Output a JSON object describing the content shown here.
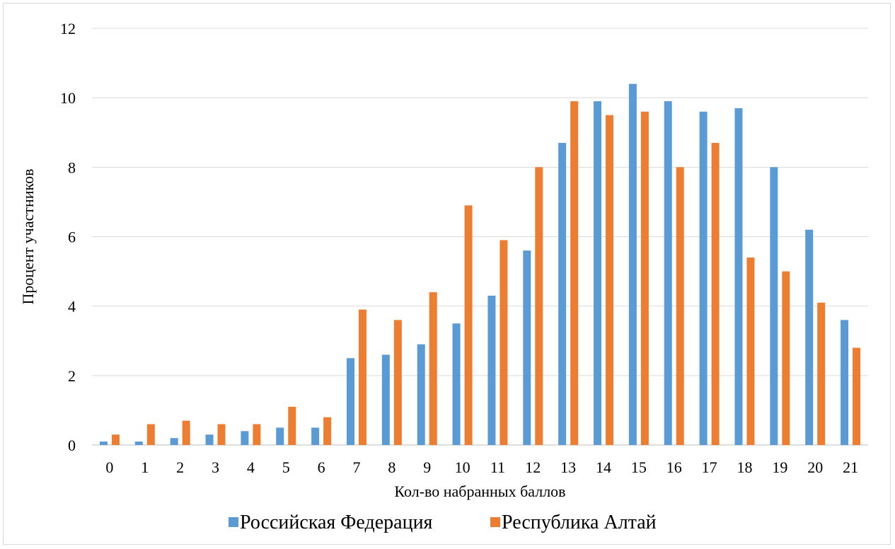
{
  "chart_data": {
    "type": "bar",
    "categories": [
      "0",
      "1",
      "2",
      "3",
      "4",
      "5",
      "6",
      "7",
      "8",
      "9",
      "10",
      "11",
      "12",
      "13",
      "14",
      "15",
      "16",
      "17",
      "18",
      "19",
      "20",
      "21"
    ],
    "series": [
      {
        "name": "Российская Федерация",
        "color": "#5B9BD5",
        "values": [
          0.1,
          0.1,
          0.2,
          0.3,
          0.4,
          0.5,
          0.5,
          2.5,
          2.6,
          2.9,
          3.5,
          4.3,
          5.6,
          8.7,
          9.9,
          10.4,
          9.9,
          9.6,
          9.7,
          8.0,
          6.2,
          3.6
        ]
      },
      {
        "name": "Республика Алтай",
        "color": "#ED7D31",
        "values": [
          0.3,
          0.6,
          0.7,
          0.6,
          0.6,
          1.1,
          0.8,
          3.9,
          3.6,
          4.4,
          6.9,
          5.9,
          8.0,
          9.9,
          9.5,
          9.6,
          8.0,
          8.7,
          5.4,
          5.0,
          4.1,
          2.8
        ]
      }
    ],
    "xlabel": "Кол-во набранных баллов",
    "ylabel": "Процент участников",
    "ylim": [
      0,
      12
    ],
    "yticks": [
      "0",
      "2",
      "4",
      "6",
      "8",
      "10",
      "12"
    ],
    "grid": true,
    "legend": "bottom"
  }
}
